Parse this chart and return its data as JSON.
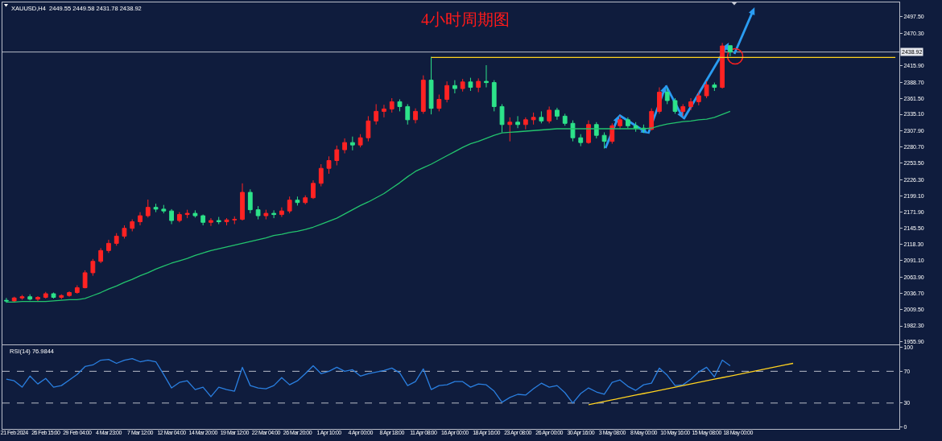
{
  "chart_data": [
    {
      "type": "candlestick",
      "title": "4小时周期图",
      "annotations": [
        "XAUUSD,H4  2449.55 2449.58 2431.78 2438.92"
      ],
      "categories": [
        null,
        null,
        null,
        null,
        null,
        null,
        null,
        null,
        null,
        null,
        null,
        null,
        null,
        null,
        null,
        null,
        null,
        null,
        null,
        null,
        null,
        null,
        null,
        null,
        null,
        null,
        null,
        null,
        null,
        null,
        null,
        null,
        null,
        null,
        null,
        null,
        null,
        null,
        null,
        null,
        null,
        null,
        null,
        null,
        null,
        null,
        null,
        null,
        null,
        null,
        null,
        null,
        null,
        null,
        null,
        null,
        null,
        null,
        null,
        null,
        null,
        null,
        null,
        null,
        null,
        null,
        null,
        null,
        null,
        null,
        null,
        null,
        null,
        null,
        null,
        null,
        null,
        null,
        null,
        null,
        null,
        null,
        null,
        null,
        null,
        null,
        null,
        null,
        null,
        null,
        null,
        null,
        null,
        null,
        null,
        null,
        null,
        null,
        null,
        null,
        null,
        null,
        null,
        null,
        null,
        null,
        null,
        null,
        null,
        null,
        null,
        null,
        null,
        null
      ],
      "ohlc": [
        [
          2025,
          2029,
          2021,
          2024
        ],
        [
          2024,
          2031,
          2022,
          2029
        ],
        [
          2029,
          2034,
          2026,
          2031
        ],
        [
          2031,
          2035,
          2025,
          2027
        ],
        [
          2027,
          2032,
          2023,
          2030
        ],
        [
          2030,
          2039,
          2028,
          2036
        ],
        [
          2036,
          2038,
          2028,
          2030
        ],
        [
          2030,
          2035,
          2027,
          2033
        ],
        [
          2033,
          2040,
          2031,
          2038
        ],
        [
          2038,
          2050,
          2036,
          2046
        ],
        [
          2046,
          2075,
          2045,
          2071
        ],
        [
          2071,
          2094,
          2066,
          2090
        ],
        [
          2090,
          2112,
          2087,
          2108
        ],
        [
          2108,
          2126,
          2104,
          2120
        ],
        [
          2120,
          2137,
          2116,
          2132
        ],
        [
          2132,
          2150,
          2128,
          2145
        ],
        [
          2145,
          2160,
          2140,
          2156
        ],
        [
          2156,
          2172,
          2150,
          2166
        ],
        [
          2166,
          2193,
          2163,
          2180
        ],
        [
          2180,
          2186,
          2172,
          2177
        ],
        [
          2177,
          2184,
          2170,
          2174
        ],
        [
          2174,
          2177,
          2152,
          2158
        ],
        [
          2158,
          2172,
          2155,
          2168
        ],
        [
          2168,
          2176,
          2162,
          2170
        ],
        [
          2170,
          2175,
          2163,
          2166
        ],
        [
          2166,
          2168,
          2150,
          2155
        ],
        [
          2155,
          2162,
          2149,
          2158
        ],
        [
          2158,
          2164,
          2152,
          2156
        ],
        [
          2156,
          2162,
          2150,
          2159
        ],
        [
          2159,
          2165,
          2152,
          2160
        ],
        [
          2160,
          2220,
          2158,
          2205
        ],
        [
          2205,
          2210,
          2170,
          2176
        ],
        [
          2176,
          2182,
          2160,
          2166
        ],
        [
          2166,
          2176,
          2160,
          2170
        ],
        [
          2170,
          2175,
          2162,
          2168
        ],
        [
          2168,
          2180,
          2164,
          2174
        ],
        [
          2174,
          2198,
          2170,
          2192
        ],
        [
          2192,
          2198,
          2183,
          2188
        ],
        [
          2188,
          2200,
          2185,
          2196
        ],
        [
          2196,
          2225,
          2194,
          2220
        ],
        [
          2220,
          2252,
          2215,
          2245
        ],
        [
          2245,
          2265,
          2236,
          2258
        ],
        [
          2258,
          2283,
          2250,
          2276
        ],
        [
          2276,
          2295,
          2270,
          2288
        ],
        [
          2288,
          2298,
          2275,
          2284
        ],
        [
          2284,
          2302,
          2280,
          2296
        ],
        [
          2296,
          2332,
          2290,
          2324
        ],
        [
          2324,
          2352,
          2318,
          2340
        ],
        [
          2340,
          2351,
          2330,
          2344
        ],
        [
          2344,
          2362,
          2338,
          2356
        ],
        [
          2356,
          2360,
          2340,
          2348
        ],
        [
          2348,
          2352,
          2318,
          2326
        ],
        [
          2326,
          2345,
          2320,
          2340
        ],
        [
          2340,
          2400,
          2336,
          2392
        ],
        [
          2392,
          2431,
          2335,
          2345
        ],
        [
          2345,
          2368,
          2340,
          2360
        ],
        [
          2360,
          2390,
          2355,
          2383
        ],
        [
          2383,
          2392,
          2370,
          2378
        ],
        [
          2378,
          2394,
          2373,
          2389
        ],
        [
          2389,
          2396,
          2374,
          2380
        ],
        [
          2380,
          2395,
          2372,
          2390
        ],
        [
          2390,
          2417,
          2380,
          2388
        ],
        [
          2388,
          2392,
          2340,
          2348
        ],
        [
          2348,
          2352,
          2305,
          2318
        ],
        [
          2318,
          2330,
          2290,
          2322
        ],
        [
          2322,
          2332,
          2312,
          2318
        ],
        [
          2318,
          2330,
          2310,
          2326
        ],
        [
          2326,
          2338,
          2318,
          2330
        ],
        [
          2330,
          2340,
          2320,
          2324
        ],
        [
          2324,
          2348,
          2320,
          2342
        ],
        [
          2342,
          2346,
          2326,
          2332
        ],
        [
          2332,
          2336,
          2316,
          2320
        ],
        [
          2320,
          2325,
          2290,
          2296
        ],
        [
          2296,
          2302,
          2282,
          2288
        ],
        [
          2288,
          2325,
          2286,
          2318
        ],
        [
          2318,
          2322,
          2295,
          2300
        ],
        [
          2300,
          2305,
          2278,
          2290
        ],
        [
          2290,
          2320,
          2286,
          2316
        ],
        [
          2316,
          2332,
          2310,
          2326
        ],
        [
          2326,
          2330,
          2312,
          2316
        ],
        [
          2316,
          2322,
          2306,
          2312
        ],
        [
          2312,
          2318,
          2304,
          2310
        ],
        [
          2310,
          2345,
          2308,
          2340
        ],
        [
          2340,
          2380,
          2336,
          2372
        ],
        [
          2372,
          2378,
          2352,
          2358
        ],
        [
          2358,
          2362,
          2336,
          2340
        ],
        [
          2340,
          2352,
          2332,
          2348
        ],
        [
          2348,
          2362,
          2342,
          2356
        ],
        [
          2356,
          2372,
          2350,
          2366
        ],
        [
          2366,
          2390,
          2362,
          2384
        ],
        [
          2384,
          2388,
          2374,
          2380
        ],
        [
          2380,
          2454,
          2378,
          2449
        ],
        [
          2449.55,
          2449.58,
          2431.78,
          2438.92
        ],
        null,
        null,
        null,
        null,
        null,
        null,
        null,
        null,
        null,
        null,
        null,
        null,
        null,
        null,
        null,
        null,
        null,
        null,
        null,
        null,
        null
      ],
      "series": [
        {
          "type": "line",
          "color": "#23c46e",
          "values": [
            2022,
            2022,
            2023,
            2023,
            2023,
            2023,
            2024,
            2025,
            2026,
            2026,
            2028,
            2033,
            2038,
            2044,
            2049,
            2055,
            2060,
            2066,
            2071,
            2077,
            2082,
            2087,
            2091,
            2095,
            2100,
            2104,
            2108,
            2111,
            2114,
            2117,
            2120,
            2123,
            2126,
            2129,
            2133,
            2135,
            2138,
            2140,
            2143,
            2147,
            2152,
            2157,
            2162,
            2169,
            2176,
            2183,
            2189,
            2196,
            2203,
            2212,
            2221,
            2231,
            2240,
            2246,
            2252,
            2259,
            2266,
            2273,
            2280,
            2286,
            2290,
            2295,
            2300,
            2304,
            2305,
            2306,
            2307,
            2308,
            2309,
            2310,
            2311,
            2311,
            2311,
            2311,
            2311,
            2311,
            2311,
            2311,
            2311,
            2311,
            2311,
            2311,
            2312,
            2316,
            2319,
            2321,
            2323,
            2324,
            2326,
            2327,
            2330,
            2335,
            2340,
            null,
            null,
            null,
            null,
            null,
            null,
            null,
            null,
            null,
            null,
            null,
            null,
            null,
            null,
            null,
            null,
            null,
            null,
            null,
            null,
            null
          ]
        },
        {
          "type": "line",
          "color": "#ffd21f",
          "values": [
            null,
            null,
            null,
            null,
            null,
            null,
            null,
            null,
            null,
            null,
            null,
            null,
            null,
            null,
            null,
            null,
            null,
            null,
            null,
            null,
            null,
            null,
            null,
            null,
            null,
            null,
            null,
            null,
            null,
            null,
            null,
            null,
            null,
            null,
            null,
            null,
            null,
            null,
            null,
            null,
            null,
            null,
            null,
            null,
            null,
            null,
            null,
            null,
            null,
            null,
            null,
            null,
            null,
            null,
            2430,
            2430,
            2430,
            2430,
            2430,
            2430,
            2430,
            2430,
            2430,
            2430,
            2430,
            2430,
            2430,
            2430,
            2430,
            2430,
            2430,
            2430,
            2430,
            2430,
            2430,
            2430,
            2430,
            2430,
            2430,
            2430,
            2430,
            2430,
            2430,
            2430,
            2430,
            2430,
            2430,
            2430,
            2430,
            2430,
            2430,
            2430,
            2430,
            2430,
            2430,
            2430,
            2430,
            2430,
            2430,
            2430,
            2430,
            2430,
            2430,
            2430,
            2430,
            2430,
            2430,
            2430,
            2430,
            2430,
            2430,
            2430,
            2430,
            2430
          ]
        }
      ],
      "ref_lines": [
        {
          "axis": "y",
          "value": 2438.92,
          "label": "2438.92",
          "color": "#b8bcc8"
        }
      ],
      "ylim": [
        1951.5,
        2521.6
      ],
      "yticks": [
        {
          "value": 1955.9,
          "label": "1955.90"
        },
        {
          "value": 1982.3,
          "label": "1982.30"
        },
        {
          "value": 2009.5,
          "label": "2009.50"
        },
        {
          "value": 2036.7,
          "label": "2036.70"
        },
        {
          "value": 2063.9,
          "label": "2063.90"
        },
        {
          "value": 2091.1,
          "label": "2091.10"
        },
        {
          "value": 2118.3,
          "label": "2118.30"
        },
        {
          "value": 2145.5,
          "label": "2145.50"
        },
        {
          "value": 2171.9,
          "label": "2171.90"
        },
        {
          "value": 2199.1,
          "label": "2199.10"
        },
        {
          "value": 2226.3,
          "label": "2226.30"
        },
        {
          "value": 2253.5,
          "label": "2253.50"
        },
        {
          "value": 2280.7,
          "label": "2280.70"
        },
        {
          "value": 2307.9,
          "label": "2307.90"
        },
        {
          "value": 2335.1,
          "label": "2335.10"
        },
        {
          "value": 2361.5,
          "label": "2361.50"
        },
        {
          "value": 2388.7,
          "label": "2388.70"
        },
        {
          "value": 2415.9,
          "label": "2415.90"
        },
        {
          "value": 2470.3,
          "label": "2470.30"
        },
        {
          "value": 2497.5,
          "label": "2497.50"
        }
      ],
      "tick_labels": "y"
    },
    {
      "type": "line",
      "title": "RSI(14) 76.9844",
      "categories": [
        null,
        "21 Feb 2024",
        null,
        null,
        null,
        "26 Feb 15:00",
        null,
        null,
        null,
        "29 Feb 04:00",
        null,
        null,
        null,
        "4 Mar 23:00",
        null,
        null,
        null,
        "7 Mar 12:00",
        null,
        null,
        null,
        "12 Mar 04:00",
        null,
        null,
        null,
        "14 Mar 20:00",
        null,
        null,
        null,
        "19 Mar 12:00",
        null,
        null,
        null,
        "22 Mar 04:00",
        null,
        null,
        null,
        "26 Mar 20:00",
        null,
        null,
        null,
        "1 Apr 10:00",
        null,
        null,
        null,
        "4 Apr 00:00",
        null,
        null,
        null,
        "8 Apr 18:00",
        null,
        null,
        null,
        "11 Apr 08:00",
        null,
        null,
        null,
        "16 Apr 00:00",
        null,
        null,
        null,
        "18 Apr 16:00",
        null,
        null,
        null,
        "23 Apr 08:00",
        null,
        null,
        null,
        "26 Apr 00:00",
        null,
        null,
        null,
        "30 Apr 16:00",
        null,
        null,
        null,
        "3 May 08:00",
        null,
        null,
        null,
        "8 May 00:00",
        null,
        null,
        null,
        "10 May 16:00",
        null,
        null,
        null,
        "15 May 08:00",
        null,
        null,
        null,
        "18 May 00:00",
        null,
        null,
        null,
        null,
        null,
        null,
        null,
        null,
        null,
        null,
        null,
        null,
        null,
        null,
        null,
        null,
        null,
        null,
        null,
        null
      ],
      "series": [
        {
          "color": "#2a7fe0",
          "values": [
            60,
            58,
            50,
            64,
            54,
            61,
            50,
            52,
            59,
            66,
            76,
            78,
            84,
            85,
            80,
            84,
            86,
            82,
            84,
            82,
            66,
            49,
            56,
            58,
            47,
            50,
            38,
            50,
            47,
            45,
            75,
            52,
            49,
            48,
            52,
            62,
            53,
            58,
            67,
            77,
            67,
            70,
            75,
            70,
            72,
            64,
            67,
            69,
            71,
            74,
            68,
            52,
            57,
            73,
            47,
            52,
            53,
            57,
            57,
            50,
            54,
            53,
            45,
            31,
            37,
            41,
            40,
            48,
            55,
            50,
            52,
            43,
            30,
            42,
            49,
            44,
            41,
            56,
            59,
            51,
            46,
            53,
            55,
            74,
            65,
            52,
            53,
            60,
            69,
            75,
            63,
            84,
            77,
            null,
            null,
            null,
            null,
            null,
            null,
            null,
            null,
            null,
            null,
            null,
            null,
            null,
            null,
            null,
            null,
            null,
            null,
            null,
            null,
            null
          ]
        },
        {
          "color": "#ffd21f",
          "values": [
            null,
            null,
            null,
            null,
            null,
            null,
            null,
            null,
            null,
            null,
            null,
            null,
            null,
            null,
            null,
            null,
            null,
            null,
            null,
            null,
            null,
            null,
            null,
            null,
            null,
            null,
            null,
            null,
            null,
            null,
            null,
            null,
            null,
            null,
            null,
            null,
            null,
            null,
            null,
            null,
            null,
            null,
            null,
            null,
            null,
            null,
            null,
            null,
            null,
            null,
            null,
            null,
            null,
            null,
            null,
            null,
            null,
            null,
            null,
            null,
            null,
            null,
            null,
            null,
            null,
            null,
            null,
            null,
            null,
            null,
            null,
            null,
            null,
            null,
            28,
            30,
            32,
            34,
            36,
            38,
            40,
            42,
            44,
            46,
            48,
            50,
            52,
            54,
            56,
            58,
            60,
            62,
            64,
            66,
            68,
            70,
            72,
            74,
            76,
            78,
            80,
            null,
            null,
            null,
            null,
            null,
            null,
            null,
            null,
            null,
            null,
            null,
            null,
            null
          ]
        }
      ],
      "ref_lines": [
        {
          "axis": "y",
          "value": 30,
          "color": "#b8bcc8",
          "line_style": "dashed"
        },
        {
          "axis": "y",
          "value": 70,
          "color": "#b8bcc8",
          "line_style": "dashed"
        }
      ],
      "ylim": [
        -2.6,
        102.8
      ],
      "yticks": [
        0,
        30,
        70,
        100
      ]
    }
  ]
}
